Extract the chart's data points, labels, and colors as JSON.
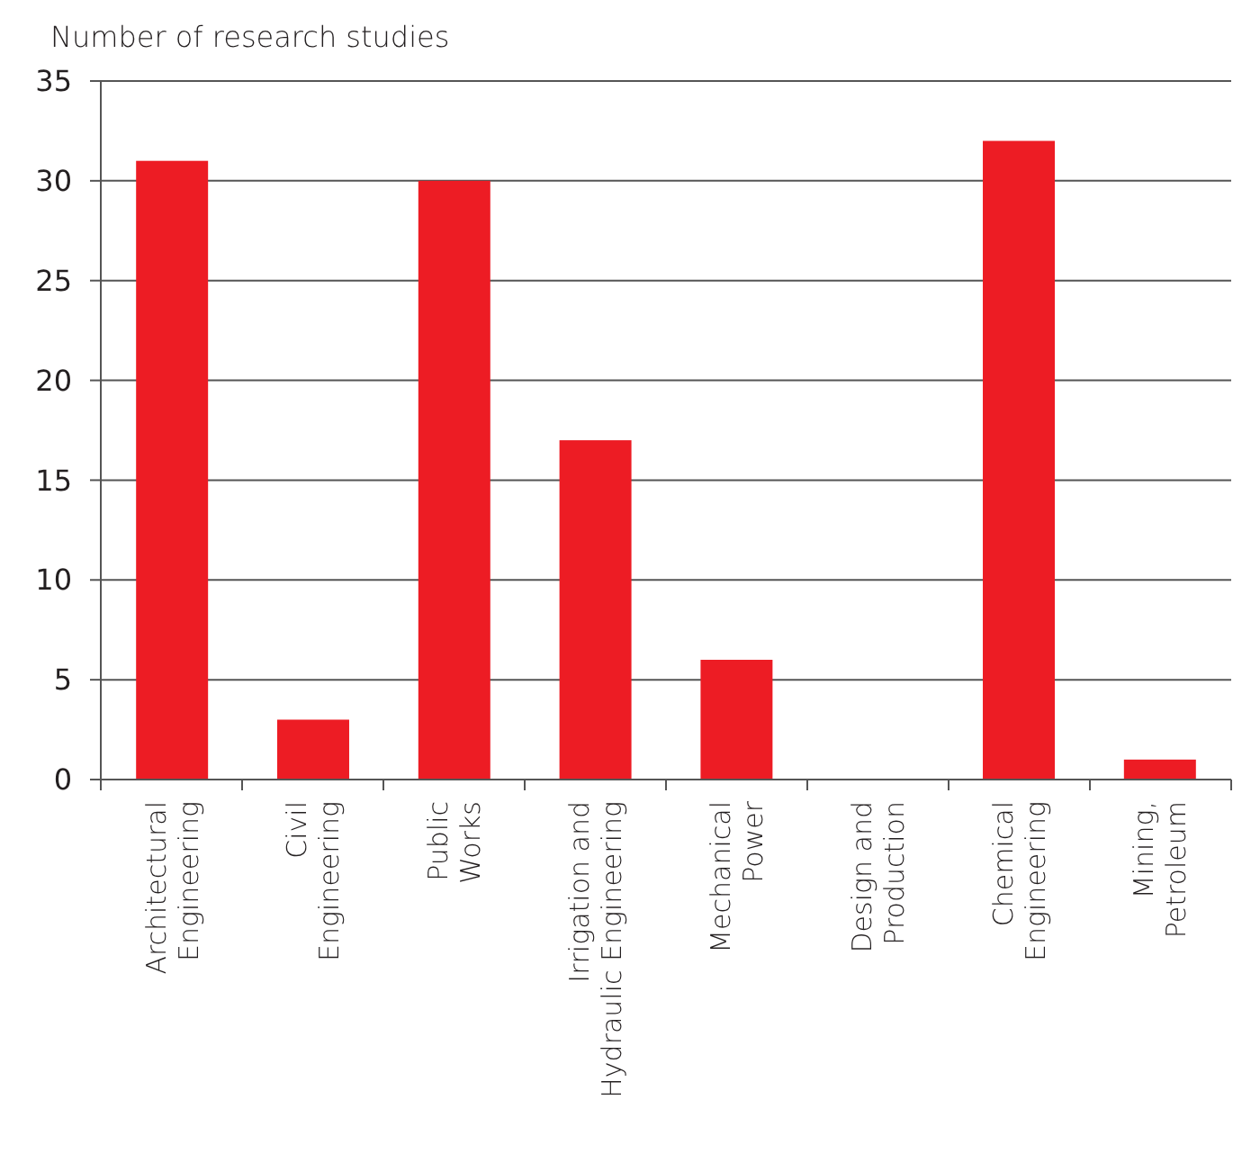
{
  "chart_data": {
    "type": "bar",
    "ylabel": "Number of research studies",
    "categories": [
      "Architectural\nEngineering",
      "Civil\nEngineering",
      "Public\nWorks",
      "Irrigation and\nHydraulic Engineering",
      "Mechanical\nPower",
      "Design and\nProduction",
      "Chemical\nEngineering",
      "Mining,\nPetroleum"
    ],
    "values": [
      31,
      3,
      30,
      17,
      6,
      0,
      32,
      1
    ],
    "color": "#ed1c24",
    "ylim": [
      0,
      35
    ],
    "yticks": [
      0,
      5,
      10,
      15,
      20,
      25,
      30,
      35
    ],
    "grid": "y"
  }
}
